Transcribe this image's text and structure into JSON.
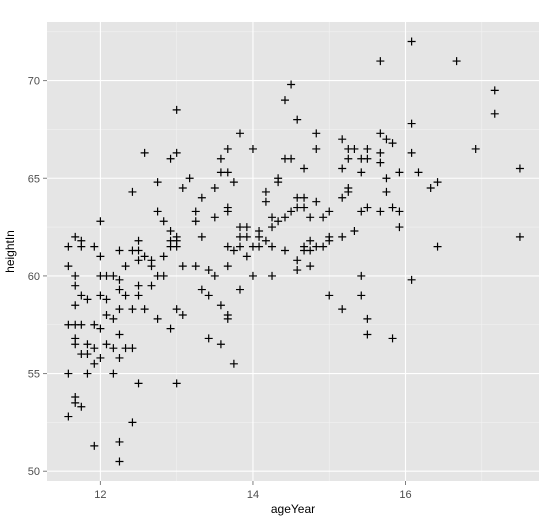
{
  "chart_data": {
    "type": "scatter",
    "marker": "plus",
    "xlabel": "ageYear",
    "ylabel": "heightIn",
    "xlim": [
      11.3,
      17.75
    ],
    "ylim": [
      49.5,
      73
    ],
    "xticks": [
      12,
      14,
      16
    ],
    "yticks": [
      50,
      55,
      60,
      65,
      70
    ],
    "xtick_labels": [
      "12",
      "14",
      "16"
    ],
    "ytick_labels": [
      "50",
      "55",
      "60",
      "65",
      "70"
    ],
    "grid": true,
    "colors": {
      "panel": "#e5e5e5",
      "grid_major": "#ffffff",
      "grid_minor": "#f2f2f2",
      "point": "#000000"
    },
    "points": [
      [
        11.58,
        61.5
      ],
      [
        11.58,
        60.5
      ],
      [
        11.58,
        57.5
      ],
      [
        11.58,
        55.0
      ],
      [
        11.58,
        52.8
      ],
      [
        11.67,
        62.0
      ],
      [
        11.67,
        60.0
      ],
      [
        11.67,
        59.5
      ],
      [
        11.67,
        58.5
      ],
      [
        11.67,
        57.5
      ],
      [
        11.67,
        56.8
      ],
      [
        11.67,
        56.5
      ],
      [
        11.67,
        53.8
      ],
      [
        11.67,
        53.5
      ],
      [
        11.75,
        61.8
      ],
      [
        11.75,
        61.5
      ],
      [
        11.75,
        59.0
      ],
      [
        11.75,
        57.5
      ],
      [
        11.75,
        56.0
      ],
      [
        11.75,
        53.3
      ],
      [
        11.83,
        58.8
      ],
      [
        11.83,
        56.5
      ],
      [
        11.83,
        56.0
      ],
      [
        11.83,
        55.0
      ],
      [
        11.92,
        61.5
      ],
      [
        11.92,
        57.5
      ],
      [
        11.92,
        56.3
      ],
      [
        11.92,
        55.5
      ],
      [
        11.92,
        51.3
      ],
      [
        12.0,
        62.8
      ],
      [
        12.0,
        61.0
      ],
      [
        12.0,
        60.0
      ],
      [
        12.0,
        59.0
      ],
      [
        12.0,
        57.3
      ],
      [
        12.0,
        55.8
      ],
      [
        12.08,
        60.0
      ],
      [
        12.08,
        58.8
      ],
      [
        12.08,
        58.0
      ],
      [
        12.08,
        56.5
      ],
      [
        12.17,
        60.0
      ],
      [
        12.17,
        57.8
      ],
      [
        12.17,
        56.3
      ],
      [
        12.17,
        55.0
      ],
      [
        12.25,
        61.3
      ],
      [
        12.25,
        59.8
      ],
      [
        12.25,
        59.3
      ],
      [
        12.25,
        58.3
      ],
      [
        12.25,
        57.0
      ],
      [
        12.25,
        55.8
      ],
      [
        12.25,
        51.5
      ],
      [
        12.25,
        50.5
      ],
      [
        12.33,
        60.5
      ],
      [
        12.33,
        59.0
      ],
      [
        12.33,
        56.3
      ],
      [
        12.42,
        64.3
      ],
      [
        12.42,
        61.3
      ],
      [
        12.42,
        58.3
      ],
      [
        12.42,
        56.3
      ],
      [
        12.42,
        52.5
      ],
      [
        12.5,
        61.8
      ],
      [
        12.5,
        61.3
      ],
      [
        12.5,
        60.8
      ],
      [
        12.5,
        59.5
      ],
      [
        12.5,
        59.0
      ],
      [
        12.5,
        54.5
      ],
      [
        12.58,
        66.3
      ],
      [
        12.58,
        61.0
      ],
      [
        12.58,
        58.3
      ],
      [
        12.67,
        60.8
      ],
      [
        12.67,
        60.5
      ],
      [
        12.67,
        59.5
      ],
      [
        12.75,
        64.8
      ],
      [
        12.75,
        63.3
      ],
      [
        12.75,
        60.0
      ],
      [
        12.75,
        57.8
      ],
      [
        12.83,
        62.8
      ],
      [
        12.83,
        61.0
      ],
      [
        12.83,
        60.0
      ],
      [
        12.92,
        66.0
      ],
      [
        12.92,
        62.3
      ],
      [
        12.92,
        61.8
      ],
      [
        12.92,
        61.5
      ],
      [
        12.92,
        57.3
      ],
      [
        13.0,
        68.5
      ],
      [
        13.0,
        66.3
      ],
      [
        13.0,
        62.0
      ],
      [
        13.0,
        61.8
      ],
      [
        13.0,
        61.5
      ],
      [
        13.0,
        58.3
      ],
      [
        13.0,
        54.5
      ],
      [
        13.08,
        64.5
      ],
      [
        13.08,
        60.5
      ],
      [
        13.08,
        58.0
      ],
      [
        13.17,
        65.0
      ],
      [
        13.25,
        63.3
      ],
      [
        13.25,
        62.8
      ],
      [
        13.25,
        60.5
      ],
      [
        13.33,
        64.0
      ],
      [
        13.33,
        62.0
      ],
      [
        13.33,
        59.3
      ],
      [
        13.42,
        60.3
      ],
      [
        13.42,
        59.0
      ],
      [
        13.42,
        56.8
      ],
      [
        13.5,
        64.5
      ],
      [
        13.5,
        63.0
      ],
      [
        13.5,
        60.0
      ],
      [
        13.58,
        66.0
      ],
      [
        13.58,
        65.3
      ],
      [
        13.58,
        58.5
      ],
      [
        13.58,
        56.5
      ],
      [
        13.67,
        66.5
      ],
      [
        13.67,
        65.3
      ],
      [
        13.67,
        63.5
      ],
      [
        13.67,
        63.3
      ],
      [
        13.67,
        61.5
      ],
      [
        13.67,
        60.5
      ],
      [
        13.67,
        58.0
      ],
      [
        13.67,
        57.8
      ],
      [
        13.75,
        64.8
      ],
      [
        13.75,
        61.3
      ],
      [
        13.75,
        55.5
      ],
      [
        13.83,
        67.3
      ],
      [
        13.83,
        62.5
      ],
      [
        13.83,
        62.0
      ],
      [
        13.83,
        61.5
      ],
      [
        13.83,
        59.3
      ],
      [
        13.92,
        62.5
      ],
      [
        13.92,
        62.0
      ],
      [
        13.92,
        61.0
      ],
      [
        14.0,
        66.5
      ],
      [
        14.0,
        61.5
      ],
      [
        14.0,
        60.0
      ],
      [
        14.08,
        62.3
      ],
      [
        14.08,
        62.0
      ],
      [
        14.08,
        61.5
      ],
      [
        14.17,
        64.3
      ],
      [
        14.17,
        63.8
      ],
      [
        14.17,
        61.8
      ],
      [
        14.25,
        63.0
      ],
      [
        14.25,
        62.5
      ],
      [
        14.25,
        61.5
      ],
      [
        14.25,
        60.0
      ],
      [
        14.33,
        65.0
      ],
      [
        14.33,
        64.8
      ],
      [
        14.33,
        62.8
      ],
      [
        14.42,
        69.0
      ],
      [
        14.42,
        66.0
      ],
      [
        14.42,
        63.0
      ],
      [
        14.42,
        61.3
      ],
      [
        14.5,
        69.8
      ],
      [
        14.5,
        66.0
      ],
      [
        14.5,
        63.3
      ],
      [
        14.58,
        68.0
      ],
      [
        14.58,
        64.0
      ],
      [
        14.58,
        63.5
      ],
      [
        14.58,
        60.8
      ],
      [
        14.58,
        60.3
      ],
      [
        14.67,
        65.5
      ],
      [
        14.67,
        64.0
      ],
      [
        14.67,
        63.5
      ],
      [
        14.67,
        61.5
      ],
      [
        14.67,
        61.3
      ],
      [
        14.75,
        63.0
      ],
      [
        14.75,
        61.8
      ],
      [
        14.75,
        61.3
      ],
      [
        14.75,
        60.5
      ],
      [
        14.83,
        67.3
      ],
      [
        14.83,
        66.5
      ],
      [
        14.83,
        63.8
      ],
      [
        14.83,
        61.5
      ],
      [
        14.92,
        63.0
      ],
      [
        14.92,
        61.5
      ],
      [
        15.0,
        63.3
      ],
      [
        15.0,
        62.0
      ],
      [
        15.0,
        61.8
      ],
      [
        15.0,
        59.0
      ],
      [
        15.17,
        67.0
      ],
      [
        15.17,
        65.5
      ],
      [
        15.17,
        64.0
      ],
      [
        15.17,
        62.0
      ],
      [
        15.17,
        58.3
      ],
      [
        15.25,
        66.5
      ],
      [
        15.25,
        66.0
      ],
      [
        15.25,
        64.5
      ],
      [
        15.25,
        64.3
      ],
      [
        15.33,
        66.5
      ],
      [
        15.33,
        62.3
      ],
      [
        15.42,
        66.0
      ],
      [
        15.42,
        65.3
      ],
      [
        15.42,
        63.3
      ],
      [
        15.42,
        60.0
      ],
      [
        15.42,
        59.0
      ],
      [
        15.5,
        66.5
      ],
      [
        15.5,
        66.0
      ],
      [
        15.5,
        63.5
      ],
      [
        15.5,
        57.8
      ],
      [
        15.5,
        57.0
      ],
      [
        15.67,
        71.0
      ],
      [
        15.67,
        67.3
      ],
      [
        15.67,
        66.3
      ],
      [
        15.67,
        65.8
      ],
      [
        15.67,
        63.3
      ],
      [
        15.75,
        67.0
      ],
      [
        15.75,
        65.0
      ],
      [
        15.75,
        64.3
      ],
      [
        15.83,
        66.8
      ],
      [
        15.83,
        63.5
      ],
      [
        15.83,
        56.8
      ],
      [
        15.92,
        65.3
      ],
      [
        15.92,
        63.3
      ],
      [
        15.92,
        62.5
      ],
      [
        16.08,
        72.0
      ],
      [
        16.08,
        67.8
      ],
      [
        16.08,
        66.3
      ],
      [
        16.08,
        59.8
      ],
      [
        16.17,
        65.3
      ],
      [
        16.33,
        64.5
      ],
      [
        16.42,
        64.8
      ],
      [
        16.42,
        61.5
      ],
      [
        16.67,
        71.0
      ],
      [
        16.92,
        66.5
      ],
      [
        17.17,
        69.5
      ],
      [
        17.17,
        68.3
      ],
      [
        17.5,
        65.5
      ],
      [
        17.5,
        62.0
      ]
    ]
  }
}
